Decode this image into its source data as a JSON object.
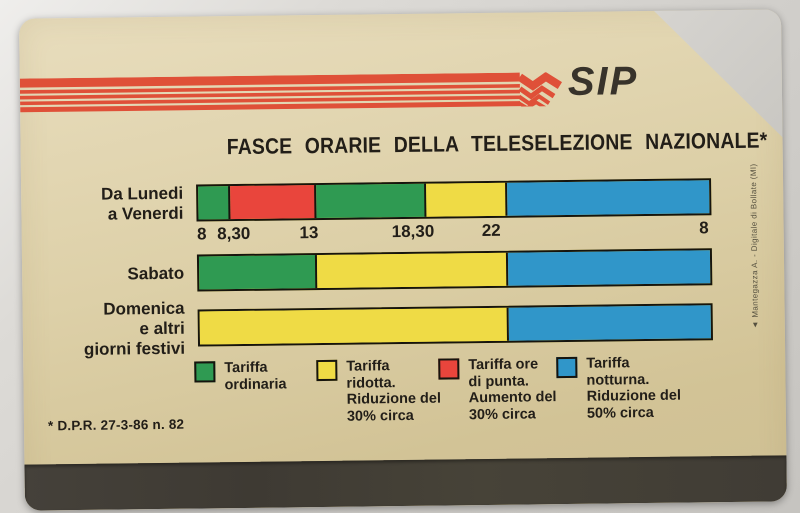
{
  "card": {
    "brand": "SIP",
    "title": "FASCE ORARIE DELLA TELESELEZIONE NAZIONALE*",
    "footnote": "* D.P.R. 27-3-86 n. 82",
    "credit": "▲ Mantegazza A. - Digitale di Bollate (MI)"
  },
  "colors": {
    "card_background": "#ddd0a8",
    "stripe_red": "#df5038",
    "sip_logo": "#38332b",
    "text": "#221e18",
    "bar_border": "#16140e",
    "magnetic_band": "#423e36",
    "backdrop": "#d2d0cc"
  },
  "chart_data": {
    "type": "bar",
    "subtype": "horizontal-stacked-time-bands",
    "title": "FASCE ORARIE DELLA TELESELEZIONE NAZIONALE*",
    "palette": {
      "green": "#2f9a52",
      "red": "#e9453c",
      "yellow": "#efdb45",
      "blue": "#3096c9"
    },
    "ticks": [
      {
        "label": "8",
        "pos": 0.01
      },
      {
        "label": "8,30",
        "pos": 0.072
      },
      {
        "label": "13",
        "pos": 0.218
      },
      {
        "label": "18,30",
        "pos": 0.42
      },
      {
        "label": "22",
        "pos": 0.572
      },
      {
        "label": "8",
        "pos": 0.985
      }
    ],
    "rows": [
      {
        "label_lines": [
          "Da Lunedi",
          "a Venerdi"
        ],
        "segments": [
          {
            "color_key": "green",
            "start": 0,
            "end": 0.062,
            "from": "8",
            "to": "8,30",
            "tariff": "Tariffa ordinaria"
          },
          {
            "color_key": "red",
            "start": 0.062,
            "end": 0.23,
            "from": "8,30",
            "to": "13",
            "tariff": "Tariffa ore di punta"
          },
          {
            "color_key": "green",
            "start": 0.23,
            "end": 0.447,
            "from": "13",
            "to": "18,30",
            "tariff": "Tariffa ordinaria"
          },
          {
            "color_key": "yellow",
            "start": 0.447,
            "end": 0.604,
            "from": "18,30",
            "to": "22",
            "tariff": "Tariffa ridotta"
          },
          {
            "color_key": "blue",
            "start": 0.604,
            "end": 1,
            "from": "22",
            "to": "8",
            "tariff": "Tariffa notturna"
          }
        ]
      },
      {
        "label_lines": [
          "Sabato"
        ],
        "segments": [
          {
            "color_key": "green",
            "start": 0,
            "end": 0.23,
            "from": "8",
            "to": "13",
            "tariff": "Tariffa ordinaria"
          },
          {
            "color_key": "yellow",
            "start": 0.23,
            "end": 0.604,
            "from": "13",
            "to": "22",
            "tariff": "Tariffa ridotta"
          },
          {
            "color_key": "blue",
            "start": 0.604,
            "end": 1,
            "from": "22",
            "to": "8",
            "tariff": "Tariffa notturna"
          }
        ]
      },
      {
        "label_lines": [
          "Domenica",
          "e altri",
          "giorni festivi"
        ],
        "segments": [
          {
            "color_key": "yellow",
            "start": 0,
            "end": 0.604,
            "from": "8",
            "to": "22",
            "tariff": "Tariffa ridotta"
          },
          {
            "color_key": "blue",
            "start": 0.604,
            "end": 1,
            "from": "22",
            "to": "8",
            "tariff": "Tariffa notturna"
          }
        ]
      }
    ],
    "legend": [
      {
        "color_key": "green",
        "lines": [
          "Tariffa",
          "ordinaria"
        ]
      },
      {
        "color_key": "yellow",
        "lines": [
          "Tariffa",
          "ridotta.",
          "Riduzione del",
          "30% circa"
        ]
      },
      {
        "color_key": "red",
        "lines": [
          "Tariffa ore",
          "di punta.",
          "Aumento del",
          "30% circa"
        ]
      },
      {
        "color_key": "blue",
        "lines": [
          "Tariffa",
          "notturna.",
          "Riduzione del",
          "50% circa"
        ]
      }
    ],
    "legend_position": "bottom",
    "grid": false
  }
}
